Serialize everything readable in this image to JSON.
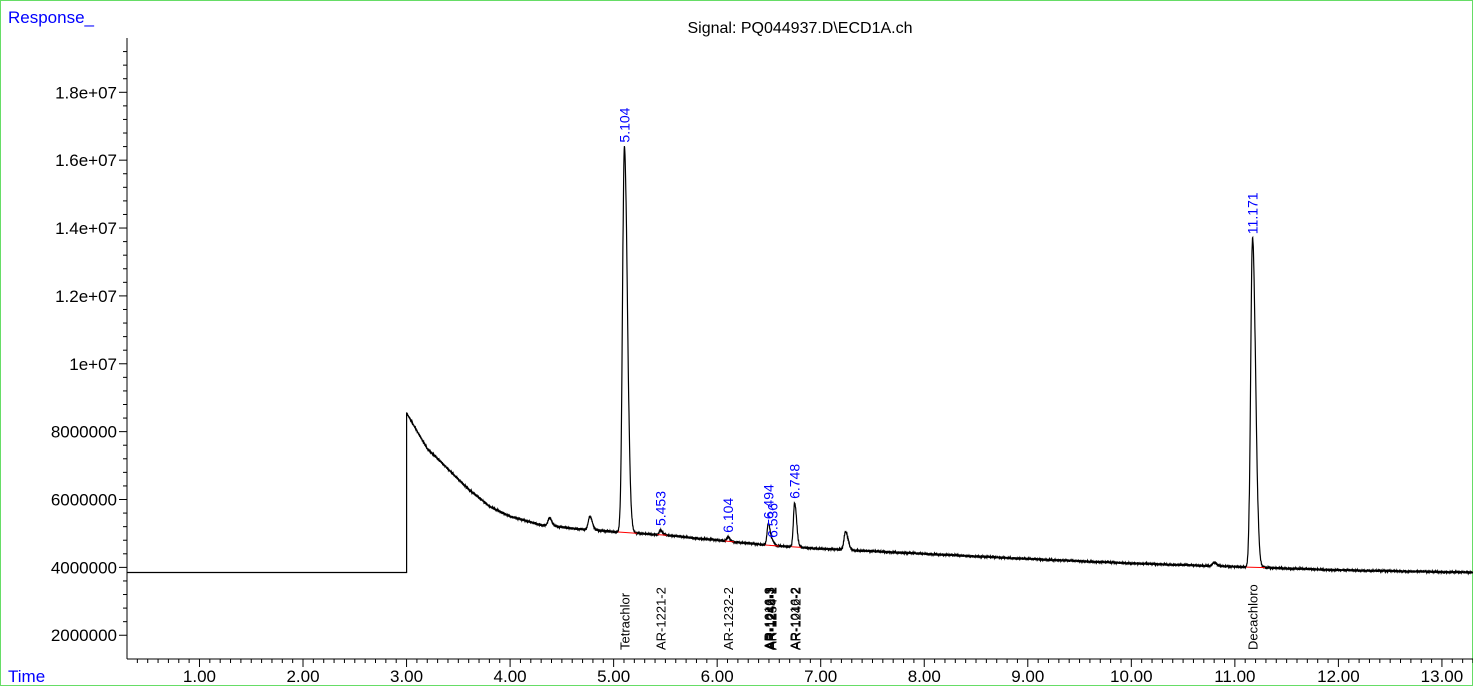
{
  "chart_data": {
    "type": "line",
    "title": "Signal: PQ044937.D\\ECD1A.ch",
    "ylabel": "Response_",
    "xlabel": "Time",
    "xlim": [
      0.3,
      13.3
    ],
    "ylim": [
      1300000,
      19600000
    ],
    "x_ticks": [
      "1.00",
      "2.00",
      "3.00",
      "4.00",
      "5.00",
      "6.00",
      "7.00",
      "8.00",
      "9.00",
      "10.00",
      "11.00",
      "12.00",
      "13.00"
    ],
    "y_ticks": [
      "2000000",
      "4000000",
      "6000000",
      "8000000",
      "1e+07",
      "1.2e+07",
      "1.4e+07",
      "1.6e+07",
      "1.8e+07"
    ],
    "baseline": {
      "pre_injection_level": 3850000,
      "step_time": 3.0,
      "step_peak": 8550000,
      "decay_points": [
        [
          3.0,
          8550000
        ],
        [
          3.2,
          7500000
        ],
        [
          3.4,
          6900000
        ],
        [
          3.6,
          6300000
        ],
        [
          3.8,
          5800000
        ],
        [
          4.0,
          5500000
        ],
        [
          4.3,
          5250000
        ],
        [
          4.6,
          5150000
        ],
        [
          5.0,
          5050000
        ],
        [
          5.5,
          4950000
        ],
        [
          6.0,
          4800000
        ],
        [
          6.5,
          4650000
        ],
        [
          7.0,
          4550000
        ],
        [
          8.0,
          4400000
        ],
        [
          9.0,
          4250000
        ],
        [
          10.0,
          4120000
        ],
        [
          11.0,
          4020000
        ],
        [
          12.0,
          3920000
        ],
        [
          13.3,
          3850000
        ]
      ]
    },
    "peaks": [
      {
        "rt": 5.104,
        "label": "5.104",
        "height": 16400000
      },
      {
        "rt": 5.453,
        "label": "5.453",
        "height": 5100000
      },
      {
        "rt": 6.104,
        "label": "6.104",
        "height": 4900000
      },
      {
        "rt": 6.494,
        "label": "6.494",
        "height": 5300000
      },
      {
        "rt": 6.536,
        "label": "6.536",
        "height": 4750000
      },
      {
        "rt": 6.748,
        "label": "6.748",
        "height": 5900000
      },
      {
        "rt": 11.171,
        "label": "11.171",
        "height": 13700000
      }
    ],
    "minor_peaks": [
      {
        "rt": 4.38,
        "height": 5450000
      },
      {
        "rt": 4.77,
        "height": 5500000
      },
      {
        "rt": 7.24,
        "height": 5050000
      },
      {
        "rt": 10.8,
        "height": 4150000
      }
    ],
    "compounds": [
      {
        "rt": 5.104,
        "label": "Tetrachlor"
      },
      {
        "rt": 5.453,
        "label": "AR-1221-2"
      },
      {
        "rt": 6.104,
        "label": "AR-1232-2"
      },
      {
        "rt": 6.494,
        "label": "AR-1016-3"
      },
      {
        "rt": 6.504,
        "label": "AR-1242-3"
      },
      {
        "rt": 6.514,
        "label": "AR-1248-2"
      },
      {
        "rt": 6.524,
        "label": "AR-1254-1"
      },
      {
        "rt": 6.748,
        "label": "AR-1016-2"
      },
      {
        "rt": 6.758,
        "label": "AR-1242-2"
      },
      {
        "rt": 11.171,
        "label": "Decachloro"
      }
    ],
    "colors": {
      "trace": "#000000",
      "peak_label": "#0000ff",
      "axis_title": "#0000ff",
      "integration": "#ff0000",
      "frame": "#66dd66"
    }
  }
}
